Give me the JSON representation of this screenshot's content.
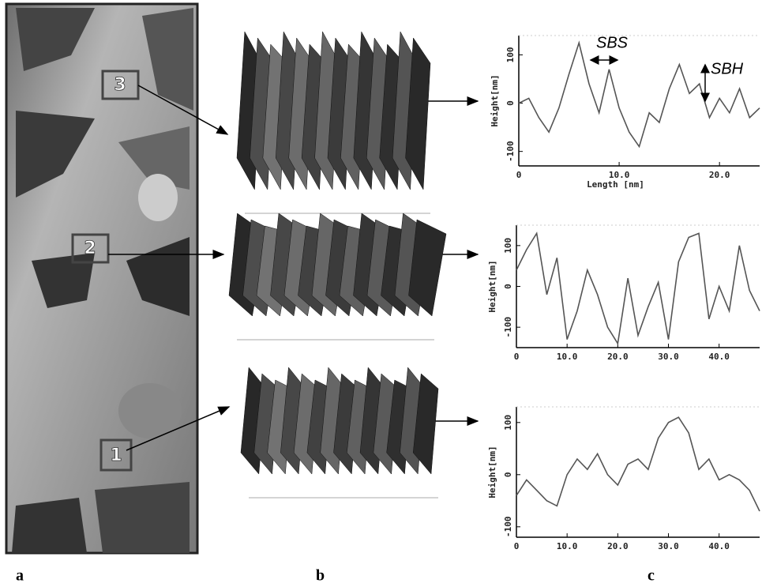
{
  "figure": {
    "panels": [
      "a",
      "b",
      "c"
    ],
    "regions": [
      "3",
      "2",
      "1"
    ]
  },
  "chart_data": [
    {
      "type": "line",
      "ylabel": "Height[nm]",
      "xlabel": "Length [nm]",
      "color": "#555",
      "annotations": [
        "SBS",
        "SBH"
      ],
      "x": [
        0,
        1,
        2,
        3,
        4,
        5,
        6,
        7,
        8,
        9,
        10,
        11,
        12,
        13,
        14,
        15,
        16,
        17,
        18,
        19,
        20,
        21,
        22,
        23,
        24
      ],
      "values": [
        0,
        10,
        -30,
        -60,
        -10,
        60,
        125,
        40,
        -20,
        70,
        -10,
        -60,
        -90,
        -20,
        -40,
        30,
        80,
        20,
        40,
        -30,
        10,
        -20,
        30,
        -30,
        -10
      ],
      "xlim": [
        0,
        24
      ],
      "xticks": [
        0,
        {
          "value": 10,
          "label": "10.0"
        },
        {
          "value": 20,
          "label": "20.0"
        }
      ],
      "ylim": [
        -130,
        140
      ],
      "yticks": [
        -100,
        0,
        100
      ]
    },
    {
      "type": "line",
      "ylabel": "Height[nm]",
      "color": "#555",
      "x": [
        0,
        2,
        4,
        6,
        8,
        10,
        12,
        14,
        16,
        18,
        20,
        22,
        24,
        26,
        28,
        30,
        32,
        34,
        36,
        38,
        40,
        42,
        44,
        46,
        48
      ],
      "values": [
        40,
        90,
        130,
        -20,
        70,
        -130,
        -60,
        40,
        -20,
        -100,
        -140,
        20,
        -120,
        -50,
        10,
        -130,
        60,
        120,
        130,
        -80,
        0,
        -60,
        100,
        -10,
        -60
      ],
      "xlim": [
        0,
        48
      ],
      "xticks": [
        0,
        {
          "value": 10,
          "label": "10.0"
        },
        {
          "value": 20,
          "label": "20.0"
        },
        {
          "value": 30,
          "label": "30.0"
        },
        {
          "value": 40,
          "label": "40.0"
        }
      ],
      "ylim": [
        -150,
        150
      ],
      "yticks": [
        -100,
        0,
        100
      ]
    },
    {
      "type": "line",
      "ylabel": "Height[nm]",
      "color": "#555",
      "x": [
        0,
        2,
        4,
        6,
        8,
        10,
        12,
        14,
        16,
        18,
        20,
        22,
        24,
        26,
        28,
        30,
        32,
        34,
        36,
        38,
        40,
        42,
        44,
        46,
        48
      ],
      "values": [
        -40,
        -10,
        -30,
        -50,
        -60,
        0,
        30,
        10,
        40,
        0,
        -20,
        20,
        30,
        10,
        70,
        100,
        110,
        80,
        10,
        30,
        -10,
        0,
        -10,
        -30,
        -70
      ],
      "xlim": [
        0,
        48
      ],
      "xticks": [
        0,
        {
          "value": 10,
          "label": "10.0"
        },
        {
          "value": 20,
          "label": "20.0"
        },
        {
          "value": 30,
          "label": "30.0"
        },
        {
          "value": 40,
          "label": "40.0"
        }
      ],
      "ylim": [
        -120,
        130
      ],
      "yticks": [
        -100,
        0,
        100
      ]
    }
  ]
}
